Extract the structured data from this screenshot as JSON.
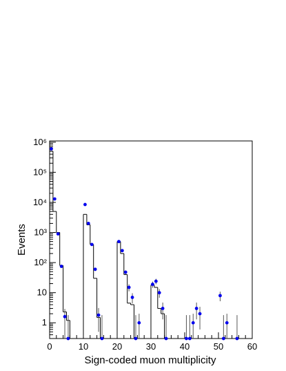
{
  "chart_data": {
    "type": "histogram",
    "xlabel": "Sign-coded muon multiplicity",
    "ylabel": "Events",
    "xlim": [
      0,
      60
    ],
    "ylim": [
      0.3,
      1100000
    ],
    "log_y": true,
    "xticks": [
      0,
      10,
      20,
      30,
      40,
      50,
      60
    ],
    "yticks": [
      1,
      10,
      {
        "value": 100,
        "label": "10²"
      },
      {
        "value": 1000,
        "label": "10³"
      },
      {
        "value": 10000,
        "label": "10⁴"
      },
      {
        "value": 100000,
        "label": "10⁵"
      },
      {
        "value": 1000000,
        "label": "10⁶"
      }
    ],
    "histogram": {
      "color": "#000000",
      "bins": [
        0,
        1,
        2,
        3,
        4,
        5,
        6,
        7,
        8,
        9,
        10,
        11,
        12,
        13,
        14,
        15,
        16,
        17,
        18,
        19,
        20,
        21,
        22,
        23,
        24,
        25,
        26,
        27,
        28,
        29,
        30,
        31,
        32,
        33,
        34,
        35,
        36,
        37,
        38,
        39,
        40,
        41,
        42,
        43,
        44,
        45,
        46,
        47,
        48,
        49,
        50,
        51,
        52,
        53,
        54,
        55,
        56,
        57,
        58,
        59,
        60
      ],
      "counts": [
        500000,
        5000,
        1000,
        80,
        2.3,
        1.2,
        0,
        0,
        0,
        0,
        4000,
        1800,
        400,
        30,
        1.5,
        0,
        0,
        0,
        0,
        0,
        500,
        200,
        40,
        4.5,
        4,
        0,
        0,
        0,
        0,
        0,
        18,
        15,
        3,
        2,
        0,
        0,
        0,
        0,
        0,
        0,
        0,
        0,
        0,
        0,
        0,
        0,
        0,
        0,
        0,
        0,
        0,
        0,
        0,
        0,
        0,
        0,
        0,
        0,
        0,
        0
      ]
    },
    "points": {
      "color": "#0000ee",
      "x": [
        0.5,
        1.5,
        2.5,
        3.5,
        4.5,
        5.5,
        10.5,
        11.5,
        12.5,
        13.5,
        14.5,
        15.5,
        20.5,
        21.5,
        22.5,
        23.5,
        24.5,
        25.5,
        26.5,
        30.5,
        31.5,
        32.5,
        33.5,
        34.5,
        40.5,
        41.5,
        42.5,
        43.5,
        44.5,
        50.5,
        51.5,
        52.5,
        55.5
      ],
      "values": [
        600000,
        13000,
        900,
        75,
        1.6,
        0,
        8500,
        2000,
        400,
        60,
        1.8,
        0,
        500,
        250,
        48,
        15,
        7,
        0,
        1,
        19,
        24,
        10,
        3,
        0,
        0,
        0,
        1,
        3,
        2,
        8,
        0,
        1,
        0
      ],
      "errors": [
        775,
        114,
        30,
        8.7,
        1.3,
        1.8,
        92,
        45,
        20,
        7.7,
        1.3,
        1.8,
        22,
        16,
        7,
        3.9,
        2.6,
        1.8,
        1,
        4.4,
        4.9,
        3.2,
        1.7,
        1.8,
        1.8,
        1.8,
        1,
        1.7,
        1.4,
        2.8,
        1.8,
        1,
        1.8
      ]
    }
  }
}
